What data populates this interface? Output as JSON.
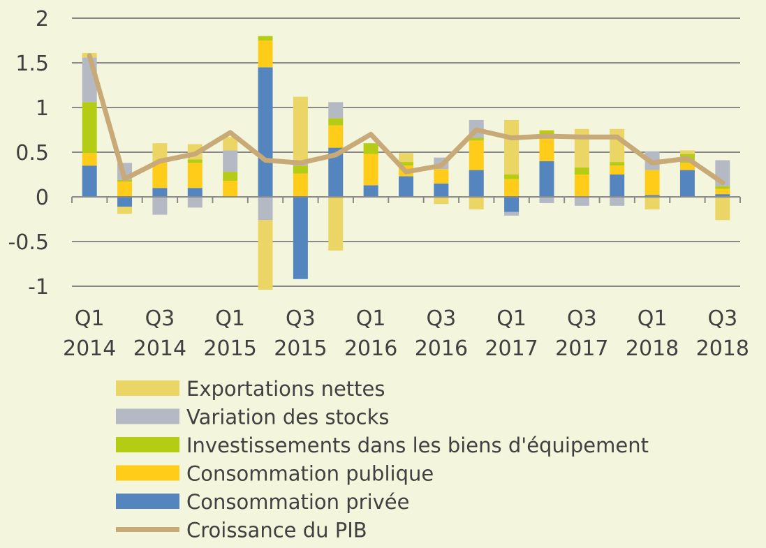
{
  "chart_data": {
    "type": "bar",
    "stacked": true,
    "title": "",
    "xlabel": "",
    "ylabel": "",
    "ylim": [
      -1,
      2
    ],
    "yticks": [
      -1,
      -0.5,
      0,
      0.5,
      1,
      1.5,
      2
    ],
    "ytick_labels": [
      "-1",
      "-0.5",
      "0",
      "0.5",
      "1",
      "1.5",
      "2"
    ],
    "grid": true,
    "legend_position": "bottom",
    "categories": [
      "Q1 2014",
      "Q2 2014",
      "Q3 2014",
      "Q4 2014",
      "Q1 2015",
      "Q2 2015",
      "Q3 2015",
      "Q4 2015",
      "Q1 2016",
      "Q2 2016",
      "Q3 2016",
      "Q4 2016",
      "Q1 2017",
      "Q2 2017",
      "Q3 2017",
      "Q4 2017",
      "Q1 2018",
      "Q2 2018",
      "Q3 2018"
    ],
    "x_tick_labels": [
      {
        "index": 0,
        "line1": "Q1",
        "line2": "2014"
      },
      {
        "index": 2,
        "line1": "Q3",
        "line2": "2014"
      },
      {
        "index": 4,
        "line1": "Q1",
        "line2": "2015"
      },
      {
        "index": 6,
        "line1": "Q3",
        "line2": "2015"
      },
      {
        "index": 8,
        "line1": "Q1",
        "line2": "2016"
      },
      {
        "index": 10,
        "line1": "Q3",
        "line2": "2016"
      },
      {
        "index": 12,
        "line1": "Q1",
        "line2": "2017"
      },
      {
        "index": 14,
        "line1": "Q3",
        "line2": "2017"
      },
      {
        "index": 16,
        "line1": "Q1",
        "line2": "2018"
      },
      {
        "index": 18,
        "line1": "Q3",
        "line2": "2018"
      }
    ],
    "series": [
      {
        "name": "Consommation privée",
        "color": "#5585be",
        "values": [
          0.35,
          -0.11,
          0.1,
          0.1,
          0,
          1.45,
          -0.92,
          0.55,
          0.13,
          0.23,
          0.15,
          0.3,
          -0.17,
          0.4,
          0,
          0.25,
          0.02,
          0.3,
          0.03
        ]
      },
      {
        "name": "Consommation publique",
        "color": "#ffcc19",
        "values": [
          0.14,
          0.17,
          0.28,
          0.28,
          0.18,
          0.3,
          0.26,
          0.25,
          0.35,
          0.12,
          0.16,
          0.33,
          0.2,
          0.25,
          0.25,
          0.1,
          0.28,
          0.08,
          0.06
        ]
      },
      {
        "name": "Investissements dans les biens d'équipement",
        "color": "#b4cc14",
        "values": [
          0.57,
          0.02,
          0,
          0.04,
          0.1,
          0.05,
          0.09,
          0.08,
          0.12,
          0.04,
          0,
          0.03,
          0.05,
          0.09,
          0.08,
          0.04,
          0,
          0.1,
          0.03
        ]
      },
      {
        "name": "Variation des stocks",
        "color": "#b4b9c3",
        "values": [
          0.5,
          0.19,
          -0.2,
          -0.12,
          0.24,
          -0.26,
          0.02,
          0.18,
          0,
          0,
          0.13,
          0.2,
          -0.04,
          -0.07,
          -0.1,
          -0.1,
          0.21,
          0,
          0.29
        ]
      },
      {
        "name": "Exportations nettes",
        "color": "#ebd564",
        "values": [
          0.05,
          -0.08,
          0.22,
          0.17,
          0.15,
          -0.78,
          0.75,
          -0.6,
          0,
          0.1,
          -0.08,
          -0.14,
          0.61,
          0.01,
          0.43,
          0.37,
          -0.14,
          0.04,
          -0.26
        ]
      }
    ],
    "line": {
      "name": "Croissance du PIB",
      "color": "#c8aa78",
      "values": [
        1.58,
        0.2,
        0.4,
        0.48,
        0.72,
        0.41,
        0.38,
        0.47,
        0.7,
        0.28,
        0.35,
        0.75,
        0.66,
        0.68,
        0.67,
        0.67,
        0.38,
        0.43,
        0.16
      ]
    },
    "legend_order": [
      "Exportations nettes",
      "Variation des stocks",
      "Investissements dans les biens d'équipement",
      "Consommation publique",
      "Consommation privée",
      "Croissance du PIB"
    ]
  }
}
